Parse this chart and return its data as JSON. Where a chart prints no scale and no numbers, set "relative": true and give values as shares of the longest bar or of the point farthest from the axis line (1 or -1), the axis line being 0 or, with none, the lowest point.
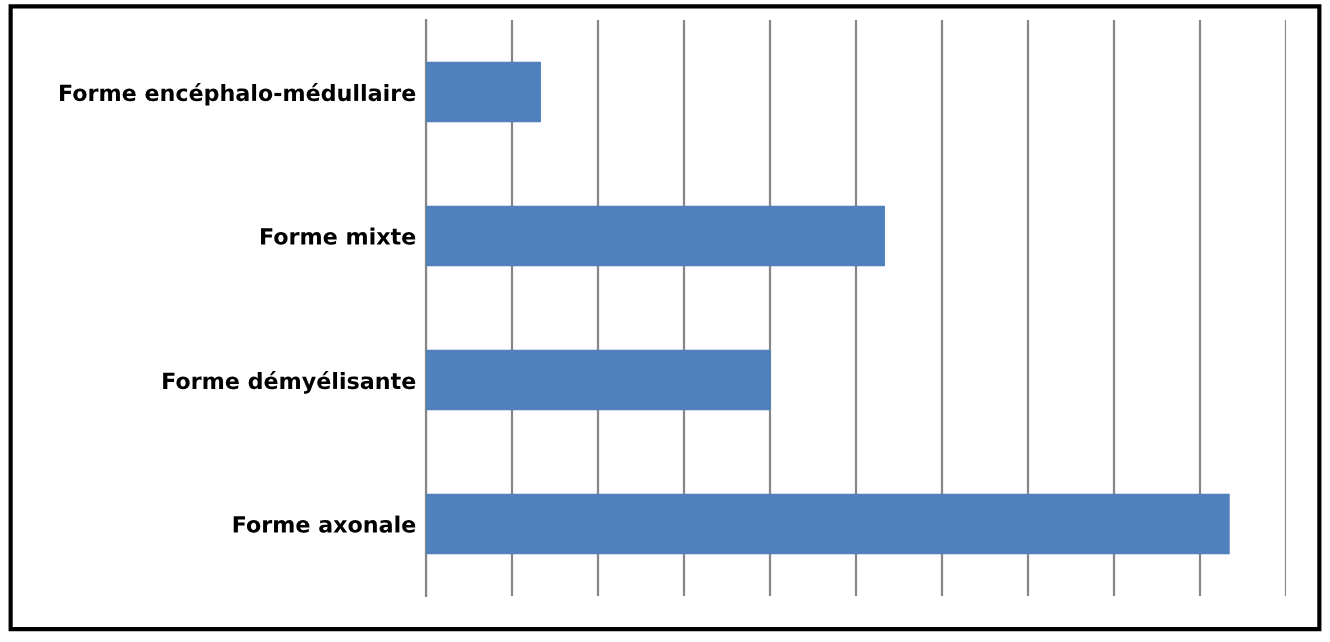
{
  "chart_data": {
    "type": "bar",
    "orientation": "horizontal",
    "relative": true,
    "categories": [
      "Forme encéphalo-médullaire",
      "Forme mixte",
      "Forme démyélisante",
      "Forme axonale"
    ],
    "values": [
      0.143,
      0.571,
      0.429,
      1
    ],
    "color": "#4f81bd",
    "grid": "x"
  }
}
